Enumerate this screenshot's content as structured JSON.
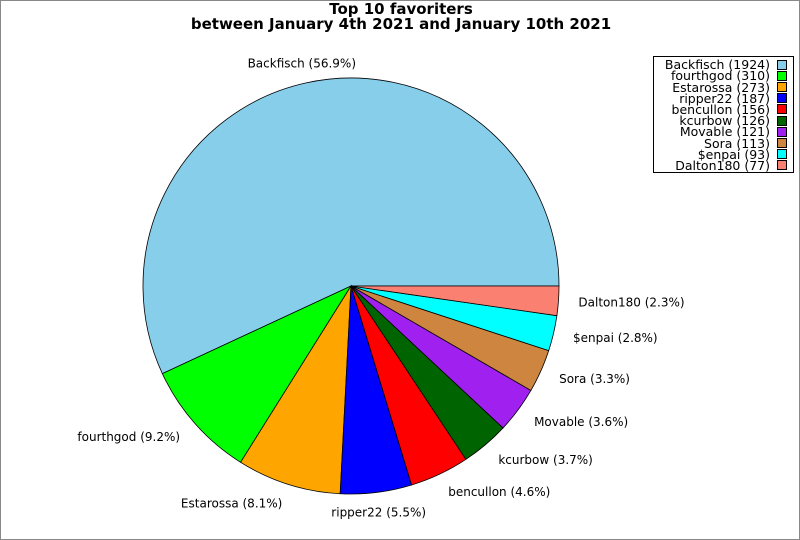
{
  "chart_data": {
    "type": "pie",
    "title": "Top 10 favoriters",
    "subtitle": "between January 4th 2021 and January 10th 2021",
    "slices": [
      {
        "label": "Backfisch",
        "value": 1924,
        "percent": "56.9%",
        "color": "#87CEEB"
      },
      {
        "label": "fourthgod",
        "value": 310,
        "percent": "9.2%",
        "color": "#00FF00"
      },
      {
        "label": "Estarossa",
        "value": 273,
        "percent": "8.1%",
        "color": "#FFA500"
      },
      {
        "label": "ripper22",
        "value": 187,
        "percent": "5.5%",
        "color": "#0000FF"
      },
      {
        "label": "bencullon",
        "value": 156,
        "percent": "4.6%",
        "color": "#FF0000"
      },
      {
        "label": "kcurbow",
        "value": 126,
        "percent": "3.7%",
        "color": "#006400"
      },
      {
        "label": "Movable",
        "value": 121,
        "percent": "3.6%",
        "color": "#A020F0"
      },
      {
        "label": "Sora",
        "value": 113,
        "percent": "3.3%",
        "color": "#CD853F"
      },
      {
        "label": "$enpai",
        "value": 93,
        "percent": "2.8%",
        "color": "#00FFFF"
      },
      {
        "label": "Dalton180",
        "value": 77,
        "percent": "2.3%",
        "color": "#FA8072"
      }
    ],
    "start_angle_deg": 0,
    "direction": "counterclockwise",
    "legend_position": "top-right"
  }
}
